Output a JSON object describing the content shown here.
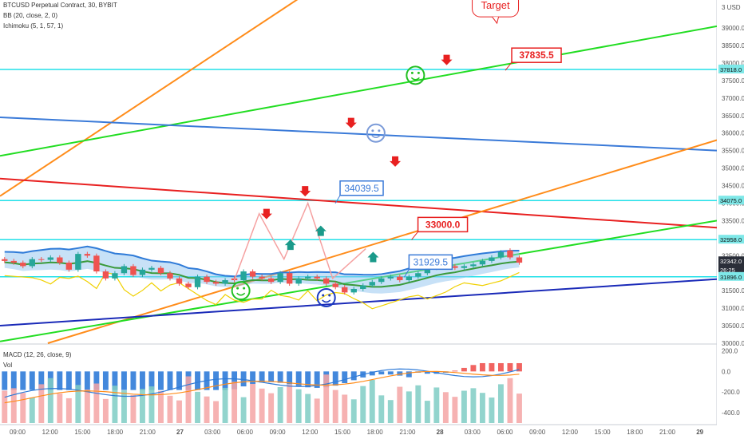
{
  "header": {
    "symbol_line": "BTCUSD Perpetual Contract, 30, BYBIT",
    "bb_line": "BB (20, close, 2, 0)",
    "ichimoku_line": "Ichimoku (5, 1, 57, 1)",
    "macd_line": "MACD (12, 26, close, 9)",
    "vol_label": "Vol"
  },
  "chart_data": {
    "type": "line",
    "title": "BTCUSD Perpetual Contract, 30, BYBIT",
    "currency_label": "3 USD",
    "price_axis": {
      "ylim": [
        30000,
        39800
      ],
      "ticks": [
        39000,
        38500,
        38000,
        37500,
        37000,
        36500,
        36000,
        35500,
        35000,
        34500,
        34000,
        33500,
        33000,
        32500,
        32000,
        31500,
        31000,
        30500,
        30000
      ],
      "tick_labels": [
        "39000.0",
        "38500.0",
        "38000.0",
        "37500.0",
        "37000.0",
        "36500.0",
        "36000.0",
        "35500.0",
        "35000.0",
        "34500.0",
        "34000.0",
        "33500.0",
        "33000.0",
        "32500.0",
        "32000.0",
        "31500.0",
        "31000.0",
        "30500.0",
        "30000.0"
      ]
    },
    "macd_axis": {
      "ylim": [
        -500,
        250
      ],
      "ticks": [
        200,
        0,
        -200,
        -400
      ],
      "tick_labels": [
        "200.0",
        "0.0",
        "-200.0",
        "-400.0"
      ]
    },
    "time_axis": {
      "labels": [
        "09:00",
        "12:00",
        "15:00",
        "18:00",
        "21:00",
        "27",
        "03:00",
        "06:00",
        "09:00",
        "12:00",
        "15:00",
        "18:00",
        "21:00",
        "28",
        "03:00",
        "06:00",
        "09:00",
        "12:00",
        "15:00",
        "18:00",
        "21:00",
        "29"
      ],
      "bold_labels": [
        "27",
        "28",
        "29"
      ],
      "bar_range": [
        0,
        78
      ]
    },
    "price_badges": [
      {
        "label": "37818.0",
        "value": 37818,
        "color": "#7ee8e8",
        "text_color": "#111111"
      },
      {
        "label": "34075.0",
        "value": 34075,
        "color": "#7ee8e8",
        "text_color": "#111111"
      },
      {
        "label": "32958.0",
        "value": 32958,
        "color": "#7ee8e8",
        "text_color": "#111111"
      },
      {
        "label": "32342.0",
        "value": 32342,
        "color": "#2a2e39",
        "text_color": "#ffffff"
      },
      {
        "label": "26:25",
        "value": 32100,
        "color": "#2a2e39",
        "text_color": "#ffffff"
      },
      {
        "label": "31896.0",
        "value": 31896,
        "color": "#7ee8e8",
        "text_color": "#111111"
      }
    ],
    "horizontal_levels": [
      37818,
      34075,
      32958,
      31896
    ],
    "trend_lines": [
      {
        "color": "#ff8c1a",
        "from": [
          0,
          34200
        ],
        "to": [
          36.3,
          40500
        ]
      },
      {
        "color": "#22dd22",
        "from": [
          0,
          35350
        ],
        "to": [
          78,
          39050
        ]
      },
      {
        "color": "#3a7ad8",
        "from": [
          0,
          36450
        ],
        "to": [
          78,
          35500
        ]
      },
      {
        "color": "#e82020",
        "from": [
          0,
          34700
        ],
        "to": [
          78,
          33300
        ]
      },
      {
        "color": "#ff8c1a",
        "from": [
          5.2,
          30000
        ],
        "to": [
          78,
          35800
        ]
      },
      {
        "color": "#22dd22",
        "from": [
          0,
          30050
        ],
        "to": [
          78,
          33500
        ]
      },
      {
        "color": "#1a2ab8",
        "from": [
          0,
          30500
        ],
        "to": [
          78,
          31830
        ]
      }
    ],
    "projection_path": [
      [
        25.5,
        31800
      ],
      [
        28.2,
        33700
      ],
      [
        30.9,
        32400
      ],
      [
        33.5,
        34000
      ],
      [
        36.2,
        31850
      ],
      [
        39.8,
        32700
      ]
    ],
    "annotations": [
      {
        "text": "37835.5",
        "value": 37835.5,
        "bar": 56.2,
        "style": "red-box"
      },
      {
        "text": "34039.5",
        "value": 34039.5,
        "bar": 37.7,
        "style": "blue-box"
      },
      {
        "text": "33000.0",
        "value": 33000,
        "bar": 46.0,
        "style": "red-box"
      },
      {
        "text": "31929.5",
        "value": 31929.5,
        "bar": 45.2,
        "style": "blue-box"
      },
      {
        "text": "Target",
        "value": 39000,
        "bar": 53.9,
        "style": "callout"
      }
    ],
    "series": [
      {
        "name": "BTCUSD",
        "close": [
          32350,
          32300,
          32200,
          32400,
          32380,
          32450,
          32300,
          32100,
          32550,
          32500,
          32050,
          31850,
          32000,
          32200,
          31950,
          32100,
          32150,
          32000,
          31850,
          31700,
          31600,
          31900,
          31750,
          31700,
          31800,
          31800,
          32050,
          31900,
          31850,
          31750,
          32000,
          31700,
          31850,
          31900,
          31850,
          31700,
          31600,
          31450,
          31550,
          31650,
          31750,
          31850,
          31900,
          31800,
          31900,
          32000,
          32150,
          32250,
          32200,
          32150,
          32200,
          32250,
          32350,
          32450,
          32600,
          32450,
          32300
        ],
        "open": [
          32400,
          32350,
          32300,
          32200,
          32400,
          32380,
          32450,
          32300,
          32100,
          32550,
          32500,
          32050,
          31850,
          32000,
          32200,
          31950,
          32100,
          32150,
          32000,
          31850,
          31700,
          31600,
          31900,
          31750,
          31700,
          31850,
          31800,
          32050,
          31900,
          31850,
          31750,
          32000,
          31700,
          31850,
          31900,
          31850,
          31700,
          31600,
          31450,
          31550,
          31650,
          31750,
          31850,
          31900,
          31800,
          31900,
          32000,
          32150,
          32250,
          32200,
          32150,
          32200,
          32250,
          32350,
          32450,
          32650,
          32450
        ]
      }
    ]
  }
}
